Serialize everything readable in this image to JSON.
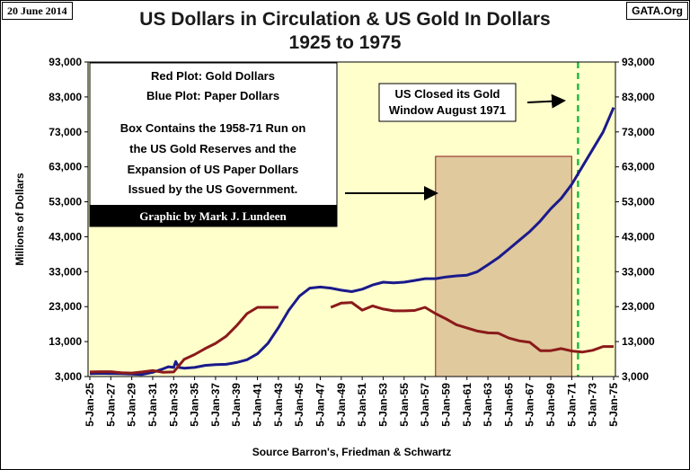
{
  "header": {
    "date": "20 June 2014",
    "site": "GATA.Org",
    "title_line1": "US Dollars in Circulation & US Gold In Dollars",
    "title_line2": "1925 to 1975"
  },
  "chart_data": {
    "type": "line",
    "title": "US Dollars in Circulation & US Gold In Dollars 1925 to 1975",
    "xlabel": "Source Barron's, Friedman & Schwartz",
    "ylabel": "Millions of Dollars",
    "ylim": [
      3000,
      93000
    ],
    "yticks": [
      3000,
      13000,
      23000,
      33000,
      43000,
      53000,
      63000,
      73000,
      83000,
      93000
    ],
    "ytick_labels": [
      "3,000",
      "13,000",
      "23,000",
      "33,000",
      "43,000",
      "53,000",
      "63,000",
      "73,000",
      "83,000",
      "93,000"
    ],
    "xlim": [
      1925,
      1975
    ],
    "xticks": [
      1925,
      1927,
      1929,
      1931,
      1933,
      1935,
      1937,
      1939,
      1941,
      1943,
      1945,
      1947,
      1949,
      1951,
      1953,
      1955,
      1957,
      1959,
      1961,
      1963,
      1965,
      1967,
      1969,
      1971,
      1973,
      1975
    ],
    "xtick_labels": [
      "5-Jan-25",
      "5-Jan-27",
      "5-Jan-29",
      "5-Jan-31",
      "5-Jan-33",
      "5-Jan-35",
      "5-Jan-37",
      "5-Jan-39",
      "5-Jan-41",
      "5-Jan-43",
      "5-Jan-45",
      "5-Jan-47",
      "5-Jan-49",
      "5-Jan-51",
      "5-Jan-53",
      "5-Jan-55",
      "5-Jan-57",
      "5-Jan-59",
      "5-Jan-61",
      "5-Jan-63",
      "5-Jan-65",
      "5-Jan-67",
      "5-Jan-69",
      "5-Jan-71",
      "5-Jan-73",
      "5-Jan-75"
    ],
    "grid": false,
    "background_color": "#ffffcc",
    "series": [
      {
        "color": "#1a1a8c",
        "segments": [
          [
            [
              1925,
              3800
            ],
            [
              1926,
              3900
            ],
            [
              1927,
              3850
            ],
            [
              1928,
              3800
            ],
            [
              1929,
              3700
            ],
            [
              1930,
              3600
            ],
            [
              1931,
              4200
            ],
            [
              1932,
              5200
            ],
            [
              1932.5,
              5800
            ],
            [
              1933,
              5600
            ],
            [
              1933.2,
              7300
            ],
            [
              1933.5,
              5600
            ],
            [
              1934,
              5400
            ],
            [
              1935,
              5600
            ],
            [
              1936,
              6200
            ],
            [
              1937,
              6400
            ],
            [
              1938,
              6500
            ],
            [
              1939,
              7000
            ],
            [
              1940,
              7800
            ],
            [
              1941,
              9500
            ],
            [
              1942,
              12500
            ],
            [
              1943,
              17000
            ],
            [
              1944,
              22000
            ],
            [
              1945,
              26000
            ],
            [
              1946,
              28300
            ],
            [
              1947,
              28600
            ],
            [
              1948,
              28300
            ],
            [
              1949,
              27700
            ],
            [
              1950,
              27300
            ],
            [
              1951,
              28000
            ],
            [
              1952,
              29200
            ],
            [
              1953,
              30000
            ],
            [
              1954,
              29800
            ],
            [
              1955,
              30000
            ],
            [
              1956,
              30500
            ],
            [
              1957,
              31000
            ],
            [
              1958,
              31000
            ],
            [
              1959,
              31500
            ],
            [
              1960,
              31800
            ],
            [
              1961,
              32000
            ],
            [
              1962,
              33000
            ],
            [
              1963,
              35000
            ],
            [
              1964,
              37000
            ],
            [
              1965,
              39500
            ],
            [
              1966,
              42000
            ],
            [
              1967,
              44500
            ],
            [
              1968,
              47500
            ],
            [
              1969,
              51000
            ],
            [
              1970,
              54000
            ],
            [
              1971,
              58000
            ],
            [
              1972,
              63000
            ],
            [
              1973,
              68000
            ],
            [
              1974,
              73000
            ],
            [
              1975,
              80000
            ]
          ]
        ]
      },
      {
        "color": "#8b1a1a",
        "segments": [
          [
            [
              1925,
              4300
            ],
            [
              1926,
              4400
            ],
            [
              1927,
              4400
            ],
            [
              1928,
              4100
            ],
            [
              1929,
              4000
            ],
            [
              1930,
              4300
            ],
            [
              1931,
              4700
            ],
            [
              1932,
              4200
            ],
            [
              1933,
              4300
            ],
            [
              1934,
              7900
            ],
            [
              1935,
              9300
            ],
            [
              1936,
              11000
            ],
            [
              1937,
              12500
            ],
            [
              1938,
              14500
            ],
            [
              1939,
              17500
            ],
            [
              1940,
              21000
            ],
            [
              1941,
              22800
            ],
            [
              1942,
              22800
            ],
            [
              1943,
              22800
            ]
          ],
          [
            [
              1948,
              22800
            ],
            [
              1949,
              24000
            ],
            [
              1950,
              24200
            ],
            [
              1951,
              22000
            ],
            [
              1952,
              23200
            ],
            [
              1953,
              22300
            ],
            [
              1954,
              21800
            ],
            [
              1955,
              21800
            ],
            [
              1956,
              21900
            ],
            [
              1957,
              22800
            ],
            [
              1958,
              21000
            ],
            [
              1959,
              19500
            ],
            [
              1960,
              17800
            ],
            [
              1961,
              16900
            ],
            [
              1962,
              16000
            ],
            [
              1963,
              15500
            ],
            [
              1964,
              15400
            ],
            [
              1965,
              14000
            ],
            [
              1966,
              13200
            ],
            [
              1967,
              12800
            ],
            [
              1968,
              10400
            ],
            [
              1969,
              10400
            ],
            [
              1970,
              11000
            ],
            [
              1971,
              10300
            ],
            [
              1972,
              10000
            ],
            [
              1973,
              10500
            ],
            [
              1974,
              11600
            ],
            [
              1975,
              11600
            ]
          ]
        ]
      }
    ],
    "box": {
      "x_range": [
        1958,
        1971
      ],
      "y_range": [
        3000,
        66000
      ]
    },
    "vline_x": 1971.6,
    "annotations": {
      "legend_line1": "Red Plot: Gold Dollars",
      "legend_line2": "Blue Plot: Paper Dollars",
      "legend_line3": "Box Contains the 1958-71 Run on",
      "legend_line4": "the US Gold Reserves and the",
      "legend_line5": "Expansion of US Paper Dollars",
      "legend_line6": "Issued by the US Government.",
      "credit": "Graphic by Mark J. Lundeen",
      "note_line1": "US Closed its Gold",
      "note_line2": "Window August 1971"
    }
  }
}
